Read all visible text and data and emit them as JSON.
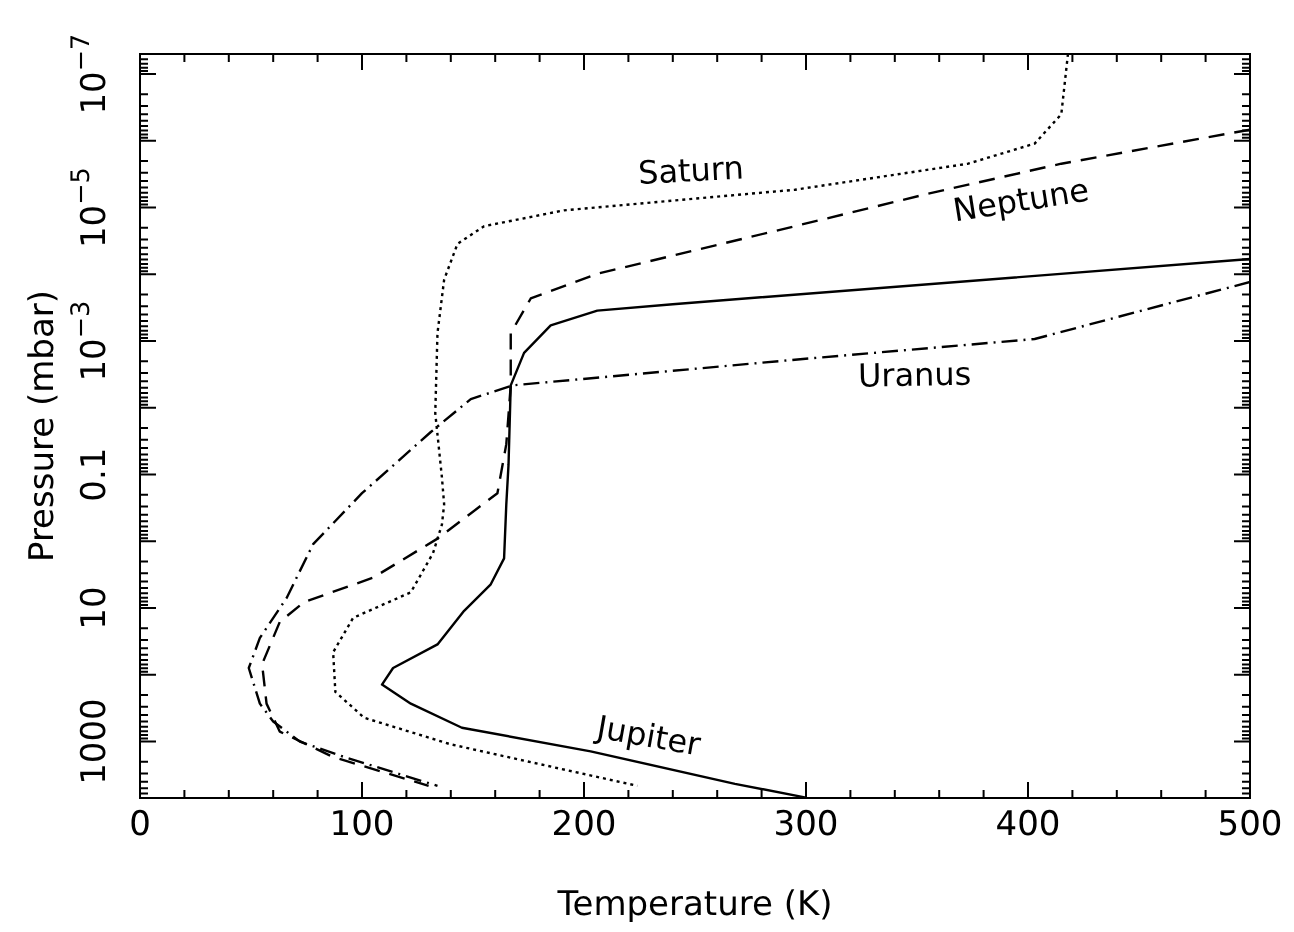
{
  "chart_data": {
    "type": "line",
    "xlabel": "Temperature (K)",
    "ylabel": "Pressure (mbar)",
    "log": "y",
    "grid": false,
    "legend": false,
    "xlim": [
      0,
      500
    ],
    "ylim": [
      7000,
      5e-08
    ],
    "xticks": [
      0,
      {
        "value": 20,
        "label": null
      },
      {
        "value": 40,
        "label": null
      },
      {
        "value": 60,
        "label": null
      },
      {
        "value": 80,
        "label": null
      },
      100,
      {
        "value": 120,
        "label": null
      },
      {
        "value": 140,
        "label": null
      },
      {
        "value": 160,
        "label": null
      },
      {
        "value": 180,
        "label": null
      },
      200,
      {
        "value": 220,
        "label": null
      },
      {
        "value": 240,
        "label": null
      },
      {
        "value": 260,
        "label": null
      },
      {
        "value": 280,
        "label": null
      },
      300,
      {
        "value": 320,
        "label": null
      },
      {
        "value": 340,
        "label": null
      },
      {
        "value": 360,
        "label": null
      },
      {
        "value": 380,
        "label": null
      },
      400,
      {
        "value": 420,
        "label": null
      },
      {
        "value": 440,
        "label": null
      },
      {
        "value": 460,
        "label": null
      },
      {
        "value": 480,
        "label": null
      },
      500
    ],
    "yticks": [
      {
        "value": 1e-07,
        "label": "10$^{−7}$"
      },
      {
        "value": 1e-06,
        "label": null
      },
      {
        "value": 1e-05,
        "label": "10$^{−5}$"
      },
      {
        "value": 0.0001,
        "label": null
      },
      {
        "value": 0.001,
        "label": "10$^{−3}$"
      },
      {
        "value": 0.01,
        "label": null
      },
      0.1,
      {
        "value": 1,
        "label": null
      },
      10,
      {
        "value": 100,
        "label": null
      },
      1000
    ],
    "series": [
      {
        "name": "Jupiter",
        "color": "#000000",
        "line_style": "solid",
        "x": [
          300,
          268,
          203,
          145,
          122,
          109,
          114,
          134,
          146,
          158,
          164,
          165,
          166,
          167,
          173,
          185,
          206,
          240,
          500
        ],
        "values": [
          6900,
          4300,
          1400,
          620,
          270,
          140,
          79,
          35,
          11,
          4.4,
          1.8,
          0.28,
          0.071,
          0.0046,
          0.0015,
          0.00058,
          0.00035,
          0.00028,
          5.9e-05
        ]
      },
      {
        "name": "Saturn",
        "color": "#000000",
        "line_style": "dotted",
        "x": [
          418,
          415,
          403,
          373,
          295,
          191,
          155,
          143,
          137,
          134,
          133,
          136,
          137,
          136,
          132,
          122,
          96,
          87,
          88,
          101,
          140,
          224
        ],
        "values": [
          5e-08,
          4e-07,
          1.1e-06,
          2.2e-06,
          5.4e-06,
          1.1e-05,
          1.9e-05,
          3.5e-05,
          0.00012,
          0.00076,
          0.012,
          0.11,
          0.28,
          0.56,
          1.5,
          5.8,
          14,
          46,
          180,
          440,
          1100,
          4600
        ]
      },
      {
        "name": "Uranus",
        "color": "#000000",
        "line_style": "dashdot",
        "x": [
          500,
          403,
          295,
          168,
          149,
          131,
          100,
          78,
          66,
          54,
          49,
          54,
          60,
          72,
          92,
          134
        ],
        "values": [
          0.00013,
          0.00093,
          0.0019,
          0.0046,
          0.0074,
          0.023,
          0.19,
          1.1,
          7.1,
          28,
          79,
          270,
          500,
          1000,
          1700,
          4600
        ]
      },
      {
        "name": "Neptune",
        "color": "#000000",
        "line_style": "dashed",
        "x": [
          500,
          415,
          355,
          295,
          206,
          176,
          167,
          167,
          165,
          161,
          134,
          105,
          74,
          63,
          55,
          57,
          63,
          87,
          130
        ],
        "values": [
          6.8e-07,
          2.2e-06,
          6.2e-06,
          1.9e-05,
          9.8e-05,
          0.00023,
          0.00076,
          0.0046,
          0.035,
          0.19,
          0.91,
          3.5,
          8.1,
          16,
          69,
          270,
          710,
          1700,
          4600
        ]
      }
    ]
  }
}
